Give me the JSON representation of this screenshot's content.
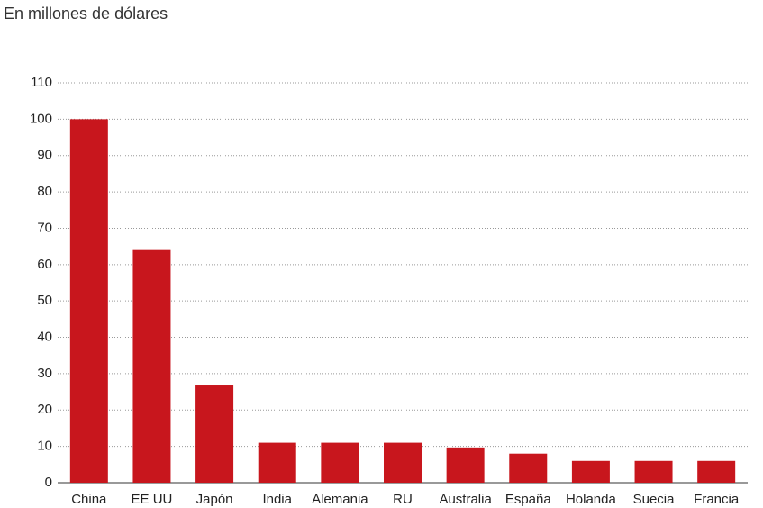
{
  "chart_data": {
    "type": "bar",
    "title": "En millones de dólares",
    "categories": [
      "China",
      "EE UU",
      "Japón",
      "India",
      "Alemania",
      "RU",
      "Australia",
      "España",
      "Holanda",
      "Suecia",
      "Francia"
    ],
    "values": [
      100,
      64,
      27,
      11,
      11,
      11,
      9.7,
      8,
      6,
      6,
      6
    ],
    "color": "#c8161d",
    "ylim": [
      0,
      110
    ],
    "yticks": [
      0,
      10,
      20,
      30,
      40,
      50,
      60,
      70,
      80,
      90,
      100,
      110
    ],
    "grid": true
  }
}
